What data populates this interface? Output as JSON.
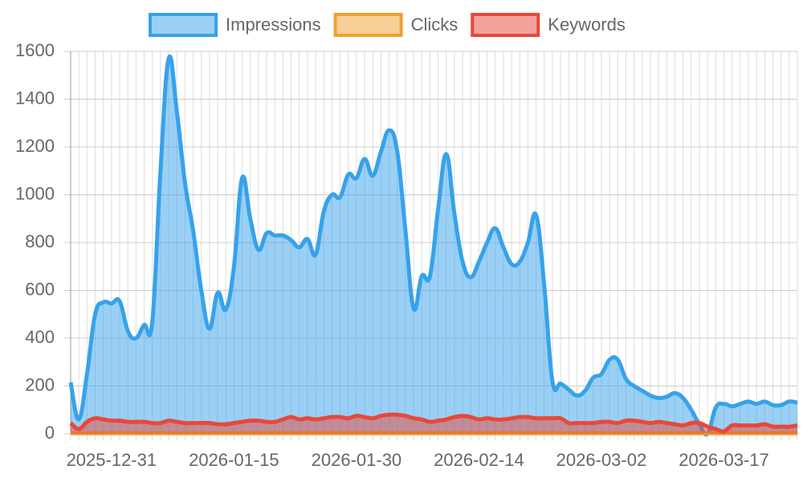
{
  "chart_data": {
    "type": "line",
    "categories": [
      null,
      null,
      null,
      null,
      null,
      "2025-12-31",
      null,
      null,
      null,
      null,
      null,
      null,
      null,
      null,
      null,
      null,
      null,
      null,
      null,
      null,
      "2026-01-15",
      null,
      null,
      null,
      null,
      null,
      null,
      null,
      null,
      null,
      null,
      null,
      null,
      null,
      null,
      "2026-01-30",
      null,
      null,
      null,
      null,
      null,
      null,
      null,
      null,
      null,
      null,
      null,
      null,
      null,
      null,
      "2026-02-14",
      null,
      null,
      null,
      null,
      null,
      null,
      null,
      null,
      null,
      null,
      null,
      null,
      null,
      null,
      "2026-03-02",
      null,
      null,
      null,
      null,
      null,
      null,
      null,
      null,
      null,
      null,
      null,
      null,
      null,
      null,
      "2026-03-17",
      null,
      null,
      null,
      null,
      null,
      null,
      null,
      null,
      null
    ],
    "series": [
      {
        "name": "Impressions",
        "color": "#36a2eb",
        "values": [
          215,
          60,
          250,
          500,
          550,
          545,
          555,
          430,
          400,
          455,
          470,
          1100,
          1570,
          1350,
          1050,
          850,
          600,
          440,
          590,
          520,
          700,
          1070,
          900,
          770,
          840,
          830,
          830,
          810,
          780,
          815,
          750,
          930,
          1000,
          990,
          1085,
          1070,
          1150,
          1080,
          1180,
          1270,
          1180,
          850,
          525,
          660,
          660,
          940,
          1170,
          920,
          720,
          655,
          720,
          800,
          860,
          780,
          710,
          720,
          800,
          915,
          620,
          220,
          210,
          185,
          160,
          180,
          235,
          250,
          310,
          310,
          230,
          200,
          180,
          160,
          150,
          155,
          170,
          150,
          100,
          40,
          0,
          110,
          125,
          115,
          125,
          135,
          125,
          135,
          120,
          120,
          135,
          130
        ]
      },
      {
        "name": "Clicks",
        "color": "#f0a030",
        "values": [
          2,
          2,
          2,
          2,
          2,
          2,
          2,
          2,
          2,
          2,
          2,
          2,
          2,
          2,
          2,
          2,
          2,
          2,
          2,
          2,
          2,
          2,
          2,
          2,
          2,
          2,
          2,
          2,
          2,
          2,
          2,
          2,
          2,
          2,
          2,
          2,
          2,
          2,
          2,
          2,
          2,
          2,
          2,
          2,
          2,
          2,
          2,
          2,
          2,
          2,
          2,
          2,
          2,
          2,
          2,
          2,
          2,
          2,
          2,
          2,
          2,
          2,
          2,
          2,
          2,
          2,
          2,
          2,
          2,
          2,
          2,
          2,
          2,
          2,
          2,
          2,
          2,
          2,
          2,
          2,
          2,
          2,
          2,
          2,
          2,
          2,
          2,
          2,
          2,
          2
        ]
      },
      {
        "name": "Keywords",
        "color": "#e8483a",
        "values": [
          45,
          20,
          50,
          65,
          60,
          55,
          55,
          50,
          50,
          50,
          45,
          45,
          55,
          50,
          45,
          45,
          45,
          45,
          40,
          40,
          45,
          50,
          55,
          55,
          50,
          50,
          60,
          70,
          60,
          65,
          60,
          65,
          70,
          70,
          65,
          75,
          70,
          65,
          75,
          80,
          80,
          75,
          65,
          60,
          50,
          55,
          60,
          70,
          75,
          70,
          60,
          65,
          60,
          60,
          65,
          70,
          70,
          65,
          65,
          65,
          65,
          45,
          45,
          45,
          45,
          50,
          50,
          45,
          55,
          55,
          50,
          45,
          50,
          45,
          40,
          35,
          45,
          45,
          30,
          20,
          10,
          35,
          35,
          35,
          35,
          40,
          30,
          30,
          30,
          35
        ]
      }
    ],
    "ylim": [
      0,
      1600
    ],
    "yticks": [
      0,
      200,
      400,
      600,
      800,
      1000,
      1200,
      1400,
      1600
    ],
    "grid": true,
    "legend": "top"
  }
}
